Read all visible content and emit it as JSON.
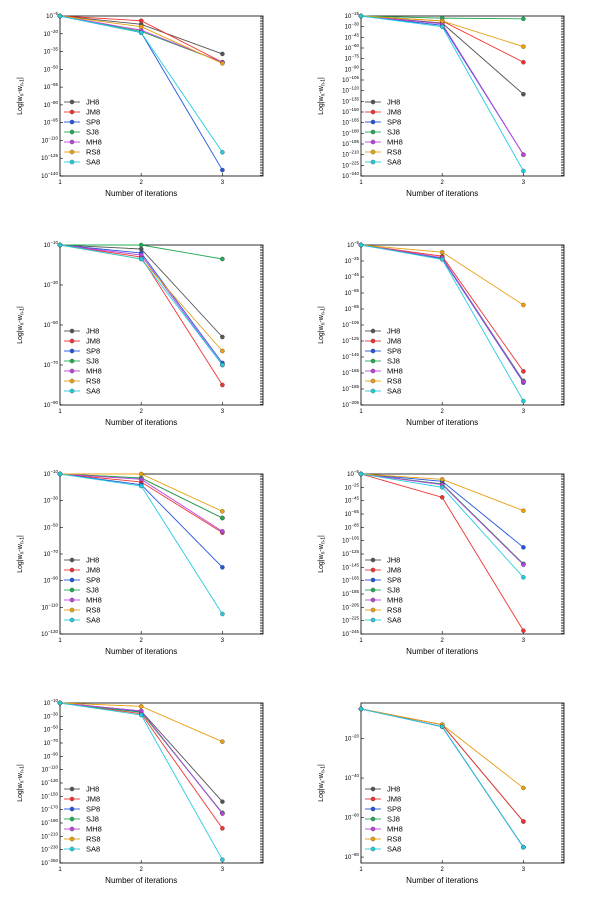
{
  "chart_data": [
    {
      "type": "line",
      "x": [
        1,
        2,
        3
      ],
      "xlabel": "Number of iterations",
      "ylabel": "Log|w_n-w_{n-1}|",
      "xlim": [
        1,
        3.5
      ],
      "yscale": "log",
      "ylim_exp": [
        -140,
        -5
      ],
      "yticks_exp": [
        -5,
        -20,
        -35,
        -50,
        -65,
        -80,
        -95,
        -110,
        -125,
        -140
      ],
      "legend": "lower-left",
      "series": [
        {
          "name": "JH8",
          "color": "#555555",
          "log10": [
            -5,
            -12,
            -37
          ]
        },
        {
          "name": "JM8",
          "color": "#ee3333",
          "log10": [
            -5,
            -9,
            -44
          ]
        },
        {
          "name": "SP8",
          "color": "#2255dd",
          "log10": [
            -5,
            -19,
            -135
          ]
        },
        {
          "name": "SJ8",
          "color": "#22aa55",
          "log10": [
            -5,
            -18,
            -44
          ]
        },
        {
          "name": "MH8",
          "color": "#bb44dd",
          "log10": [
            -5,
            -17,
            -44
          ]
        },
        {
          "name": "RS8",
          "color": "#e8a010",
          "log10": [
            -5,
            -14,
            -45
          ]
        },
        {
          "name": "SA8",
          "color": "#22ccdd",
          "log10": [
            -5,
            -19,
            -120
          ]
        }
      ]
    },
    {
      "type": "line",
      "x": [
        1,
        2,
        3
      ],
      "xlabel": "Number of iterations",
      "ylabel": "Log|w_n-w_{n-1}|",
      "xlim": [
        1,
        3.5
      ],
      "yscale": "log",
      "ylim_exp": [
        -240,
        -15
      ],
      "yticks_exp": [
        -15,
        -30,
        -45,
        -60,
        -75,
        -90,
        -105,
        -120,
        -135,
        -150,
        -165,
        -180,
        -195,
        -210,
        -225,
        -240
      ],
      "legend": "lower-left",
      "series": [
        {
          "name": "JH8",
          "color": "#555555",
          "log10": [
            -15,
            -25,
            -125
          ]
        },
        {
          "name": "JM8",
          "color": "#ee3333",
          "log10": [
            -15,
            -22,
            -80
          ]
        },
        {
          "name": "SP8",
          "color": "#2255dd",
          "log10": [
            -15,
            -28,
            -210
          ]
        },
        {
          "name": "SJ8",
          "color": "#22aa55",
          "log10": [
            -15,
            -18,
            -19
          ]
        },
        {
          "name": "MH8",
          "color": "#bb44dd",
          "log10": [
            -15,
            -26,
            -210
          ]
        },
        {
          "name": "RS8",
          "color": "#e8a010",
          "log10": [
            -15,
            -22,
            -58
          ]
        },
        {
          "name": "SA8",
          "color": "#22ccdd",
          "log10": [
            -15,
            -30,
            -233
          ]
        }
      ]
    },
    {
      "type": "line",
      "x": [
        1,
        2,
        3
      ],
      "xlabel": "Number of iterations",
      "ylabel": "Log|w_n-w_{n-1}|",
      "xlim": [
        1,
        3.5
      ],
      "yscale": "log",
      "ylim_exp": [
        -90,
        -10
      ],
      "yticks_exp": [
        -10,
        -30,
        -50,
        -70,
        -90
      ],
      "legend": "lower-left",
      "series": [
        {
          "name": "JH8",
          "color": "#555555",
          "log10": [
            -5,
            -12,
            -56
          ]
        },
        {
          "name": "JM8",
          "color": "#ee3333",
          "log10": [
            -5,
            -16,
            -80
          ]
        },
        {
          "name": "SP8",
          "color": "#2255dd",
          "log10": [
            -5,
            -14,
            -69
          ]
        },
        {
          "name": "SJ8",
          "color": "#22aa55",
          "log10": [
            -5,
            -5,
            -17
          ]
        },
        {
          "name": "MH8",
          "color": "#bb44dd",
          "log10": [
            -5,
            -15,
            -70
          ]
        },
        {
          "name": "RS8",
          "color": "#e8a010",
          "log10": [
            -5,
            -17,
            -63
          ]
        },
        {
          "name": "SA8",
          "color": "#22ccdd",
          "log10": [
            -5,
            -17,
            -70
          ]
        }
      ]
    },
    {
      "type": "line",
      "x": [
        1,
        2,
        3
      ],
      "xlabel": "Number of iterations",
      "ylabel": "Log|w_n-w_{n-1}|",
      "xlim": [
        1,
        3.5
      ],
      "yscale": "log",
      "ylim_exp": [
        -205,
        -5
      ],
      "yticks_exp": [
        -5,
        -25,
        -45,
        -65,
        -85,
        -105,
        -125,
        -145,
        -165,
        -185,
        -205
      ],
      "legend": "lower-left",
      "series": [
        {
          "name": "JH8",
          "color": "#555555",
          "log10": [
            -5,
            -21,
            -175
          ]
        },
        {
          "name": "JM8",
          "color": "#ee3333",
          "log10": [
            -5,
            -19,
            -163
          ]
        },
        {
          "name": "SP8",
          "color": "#2255dd",
          "log10": [
            -5,
            -22,
            -177
          ]
        },
        {
          "name": "SJ8",
          "color": "#22aa55",
          "log10": [
            -5,
            -21,
            -175
          ]
        },
        {
          "name": "MH8",
          "color": "#bb44dd",
          "log10": [
            -5,
            -21,
            -176
          ]
        },
        {
          "name": "RS8",
          "color": "#e8a010",
          "log10": [
            -5,
            -14,
            -80
          ]
        },
        {
          "name": "SA8",
          "color": "#22ccdd",
          "log10": [
            -5,
            -23,
            -200
          ]
        }
      ]
    },
    {
      "type": "line",
      "x": [
        1,
        2,
        3
      ],
      "xlabel": "Number of iterations",
      "ylabel": "Log|w_n-w_{n-1}|",
      "xlim": [
        1,
        3.5
      ],
      "yscale": "log",
      "ylim_exp": [
        -130,
        -10
      ],
      "yticks_exp": [
        -10,
        -30,
        -50,
        -70,
        -90,
        -110,
        -130
      ],
      "legend": "lower-left",
      "series": [
        {
          "name": "JH8",
          "color": "#555555",
          "log10": [
            -5,
            -13,
            -43
          ]
        },
        {
          "name": "JM8",
          "color": "#ee3333",
          "log10": [
            -5,
            -16,
            -54
          ]
        },
        {
          "name": "SP8",
          "color": "#2255dd",
          "log10": [
            -5,
            -18,
            -80
          ]
        },
        {
          "name": "SJ8",
          "color": "#22aa55",
          "log10": [
            -5,
            -13,
            -43
          ]
        },
        {
          "name": "MH8",
          "color": "#bb44dd",
          "log10": [
            -5,
            -14,
            -53
          ]
        },
        {
          "name": "RS8",
          "color": "#e8a010",
          "log10": [
            -5,
            -10,
            -38
          ]
        },
        {
          "name": "SA8",
          "color": "#22ccdd",
          "log10": [
            -5,
            -19,
            -115
          ]
        }
      ]
    },
    {
      "type": "line",
      "x": [
        1,
        2,
        3
      ],
      "xlabel": "Number of iterations",
      "ylabel": "Log|w_n-w_{n-1}|",
      "xlim": [
        1,
        3.5
      ],
      "yscale": "log",
      "ylim_exp": [
        -245,
        -5
      ],
      "yticks_exp": [
        -5,
        -25,
        -45,
        -65,
        -85,
        -105,
        -125,
        -145,
        -165,
        -185,
        -205,
        -225,
        -245
      ],
      "legend": "lower-left",
      "series": [
        {
          "name": "JH8",
          "color": "#555555",
          "log10": [
            -5,
            -20,
            -140
          ]
        },
        {
          "name": "JM8",
          "color": "#ee3333",
          "log10": [
            -5,
            -40,
            -240
          ]
        },
        {
          "name": "SP8",
          "color": "#2255dd",
          "log10": [
            -5,
            -16,
            -115
          ]
        },
        {
          "name": "SJ8",
          "color": "#22aa55",
          "log10": [
            -5,
            -20,
            -140
          ]
        },
        {
          "name": "MH8",
          "color": "#bb44dd",
          "log10": [
            -5,
            -21,
            -141
          ]
        },
        {
          "name": "RS8",
          "color": "#e8a010",
          "log10": [
            -5,
            -13,
            -60
          ]
        },
        {
          "name": "SA8",
          "color": "#22ccdd",
          "log10": [
            -5,
            -25,
            -160
          ]
        }
      ]
    },
    {
      "type": "line",
      "x": [
        1,
        2,
        3
      ],
      "xlabel": "Number of iterations",
      "ylabel": "Log|w_n-w_{n-1}|",
      "xlim": [
        1,
        3.5
      ],
      "yscale": "log",
      "ylim_exp": [
        -250,
        -10
      ],
      "yticks_exp": [
        -10,
        -30,
        -50,
        -70,
        -90,
        -110,
        -130,
        -150,
        -170,
        -190,
        -210,
        -230,
        -250
      ],
      "legend": "lower-left",
      "series": [
        {
          "name": "JH8",
          "color": "#555555",
          "log10": [
            -5,
            -22,
            -158
          ]
        },
        {
          "name": "JM8",
          "color": "#ee3333",
          "log10": [
            -5,
            -26,
            -198
          ]
        },
        {
          "name": "SP8",
          "color": "#2255dd",
          "log10": [
            -5,
            -23,
            -175
          ]
        },
        {
          "name": "SJ8",
          "color": "#22aa55",
          "log10": [
            -5,
            -24,
            -175
          ]
        },
        {
          "name": "MH8",
          "color": "#bb44dd",
          "log10": [
            -5,
            -22,
            -176
          ]
        },
        {
          "name": "RS8",
          "color": "#e8a010",
          "log10": [
            -5,
            -15,
            -68
          ]
        },
        {
          "name": "SA8",
          "color": "#22ccdd",
          "log10": [
            -5,
            -28,
            -245
          ]
        }
      ]
    },
    {
      "type": "line",
      "x": [
        1,
        2,
        3
      ],
      "xlabel": "Number of iterations",
      "ylabel": "Log|w_n-w_{n-1}|",
      "xlim": [
        1,
        3.5
      ],
      "yscale": "log",
      "ylim_exp": [
        -83,
        -2
      ],
      "yticks_exp": [
        -20,
        -40,
        -60,
        -80
      ],
      "legend": "lower-left",
      "series": [
        {
          "name": "JH8",
          "color": "#555555",
          "log10": [
            -5,
            -13,
            -62
          ]
        },
        {
          "name": "JM8",
          "color": "#ee3333",
          "log10": [
            -5,
            -13,
            -62
          ]
        },
        {
          "name": "SP8",
          "color": "#2255dd",
          "log10": [
            -5,
            -14,
            -75
          ]
        },
        {
          "name": "SJ8",
          "color": "#22aa55",
          "log10": [
            -5,
            -14,
            -75
          ]
        },
        {
          "name": "MH8",
          "color": "#bb44dd",
          "log10": [
            -5,
            -14,
            -75
          ]
        },
        {
          "name": "RS8",
          "color": "#e8a010",
          "log10": [
            -5,
            -13,
            -45
          ]
        },
        {
          "name": "SA8",
          "color": "#22ccdd",
          "log10": [
            -5,
            -14,
            -75
          ]
        }
      ]
    }
  ]
}
